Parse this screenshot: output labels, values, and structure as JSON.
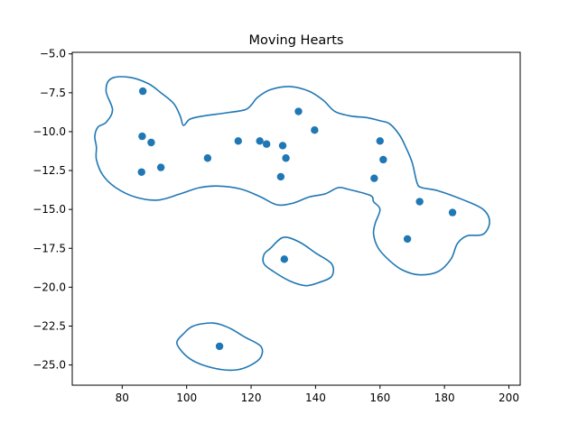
{
  "chart_data": {
    "type": "scatter",
    "title": "Moving Hearts",
    "xlabel": "",
    "ylabel": "",
    "xlim": [
      64.5,
      203.5
    ],
    "ylim": [
      -26.3,
      -4.9
    ],
    "grid": false,
    "x_ticks": [
      80,
      100,
      120,
      140,
      160,
      180,
      200
    ],
    "x_tick_labels": [
      "80",
      "100",
      "120",
      "140",
      "160",
      "180",
      "200"
    ],
    "y_ticks": [
      -5.0,
      -7.5,
      -10.0,
      -12.5,
      -15.0,
      -17.5,
      -20.0,
      -22.5,
      -25.0
    ],
    "y_tick_labels": [
      "−5.0",
      "−7.5",
      "−10.0",
      "−12.5",
      "−15.0",
      "−17.5",
      "−20.0",
      "−22.5",
      "−25.0"
    ],
    "marker_color": "#1f77b4",
    "contour_color": "#1f77b4",
    "points": [
      {
        "x": 86.4,
        "y": -7.4
      },
      {
        "x": 86.2,
        "y": -10.3
      },
      {
        "x": 89.0,
        "y": -10.7
      },
      {
        "x": 86.0,
        "y": -12.6
      },
      {
        "x": 92.0,
        "y": -12.3
      },
      {
        "x": 106.5,
        "y": -11.7
      },
      {
        "x": 116.0,
        "y": -10.6
      },
      {
        "x": 122.7,
        "y": -10.6
      },
      {
        "x": 124.8,
        "y": -10.8
      },
      {
        "x": 129.8,
        "y": -10.9
      },
      {
        "x": 130.8,
        "y": -11.7
      },
      {
        "x": 129.2,
        "y": -12.9
      },
      {
        "x": 134.7,
        "y": -8.7
      },
      {
        "x": 139.7,
        "y": -9.9
      },
      {
        "x": 160.0,
        "y": -10.6
      },
      {
        "x": 161.0,
        "y": -11.8
      },
      {
        "x": 158.2,
        "y": -13.0
      },
      {
        "x": 172.3,
        "y": -14.5
      },
      {
        "x": 182.5,
        "y": -15.2
      },
      {
        "x": 168.5,
        "y": -16.9
      },
      {
        "x": 130.3,
        "y": -18.2
      },
      {
        "x": 110.2,
        "y": -23.8
      }
    ],
    "contours": [
      [
        [
          77.0,
          -8.6
        ],
        [
          75.0,
          -7.4
        ],
        [
          76.5,
          -6.6
        ],
        [
          82.0,
          -6.5
        ],
        [
          88.0,
          -6.9
        ],
        [
          92.0,
          -7.5
        ],
        [
          96.0,
          -8.2
        ],
        [
          98.0,
          -9.0
        ],
        [
          99.0,
          -9.6
        ],
        [
          101.0,
          -9.2
        ],
        [
          105.0,
          -9.0
        ],
        [
          112.0,
          -8.8
        ],
        [
          118.0,
          -8.6
        ],
        [
          120.0,
          -8.3
        ],
        [
          122.0,
          -7.8
        ],
        [
          126.0,
          -7.3
        ],
        [
          132.0,
          -7.1
        ],
        [
          138.0,
          -7.4
        ],
        [
          142.5,
          -8.0
        ],
        [
          146.0,
          -8.7
        ],
        [
          151.0,
          -9.0
        ],
        [
          156.0,
          -9.1
        ],
        [
          160.0,
          -9.3
        ],
        [
          163.0,
          -9.5
        ],
        [
          166.0,
          -10.2
        ],
        [
          168.0,
          -11.0
        ],
        [
          170.0,
          -12.0
        ],
        [
          171.5,
          -13.3
        ],
        [
          173.0,
          -13.6
        ],
        [
          178.0,
          -13.8
        ],
        [
          186.0,
          -14.4
        ],
        [
          192.0,
          -15.0
        ],
        [
          194.0,
          -15.8
        ],
        [
          192.0,
          -16.6
        ],
        [
          187.0,
          -16.7
        ],
        [
          184.0,
          -17.2
        ],
        [
          182.0,
          -18.2
        ],
        [
          178.0,
          -19.0
        ],
        [
          172.0,
          -19.2
        ],
        [
          167.0,
          -18.9
        ],
        [
          163.0,
          -18.3
        ],
        [
          159.5,
          -17.5
        ],
        [
          158.0,
          -16.6
        ],
        [
          158.5,
          -15.9
        ],
        [
          160.0,
          -15.0
        ],
        [
          158.0,
          -14.5
        ],
        [
          157.0,
          -14.1
        ],
        [
          150.0,
          -13.7
        ],
        [
          147.0,
          -13.6
        ],
        [
          143.0,
          -14.0
        ],
        [
          138.0,
          -14.2
        ],
        [
          133.0,
          -14.6
        ],
        [
          128.0,
          -14.7
        ],
        [
          123.0,
          -14.2
        ],
        [
          117.0,
          -13.7
        ],
        [
          110.0,
          -13.5
        ],
        [
          104.0,
          -13.6
        ],
        [
          98.0,
          -14.0
        ],
        [
          91.0,
          -14.4
        ],
        [
          84.0,
          -14.2
        ],
        [
          78.0,
          -13.6
        ],
        [
          74.0,
          -12.8
        ],
        [
          72.0,
          -11.8
        ],
        [
          72.0,
          -11.0
        ],
        [
          71.5,
          -10.3
        ],
        [
          72.5,
          -9.7
        ],
        [
          75.0,
          -9.4
        ],
        [
          77.0,
          -8.6
        ]
      ],
      [
        [
          126.0,
          -17.5
        ],
        [
          130.0,
          -16.8
        ],
        [
          135.0,
          -17.1
        ],
        [
          140.0,
          -17.8
        ],
        [
          145.0,
          -18.5
        ],
        [
          145.0,
          -19.3
        ],
        [
          141.0,
          -19.7
        ],
        [
          137.0,
          -19.9
        ],
        [
          132.0,
          -19.6
        ],
        [
          127.0,
          -19.0
        ],
        [
          124.0,
          -18.5
        ],
        [
          124.0,
          -17.9
        ],
        [
          126.0,
          -17.5
        ]
      ],
      [
        [
          99.0,
          -23.0
        ],
        [
          102.0,
          -22.5
        ],
        [
          108.0,
          -22.3
        ],
        [
          113.0,
          -22.6
        ],
        [
          118.0,
          -23.2
        ],
        [
          123.0,
          -23.8
        ],
        [
          123.0,
          -24.5
        ],
        [
          120.0,
          -25.0
        ],
        [
          116.0,
          -25.3
        ],
        [
          111.0,
          -25.3
        ],
        [
          105.0,
          -25.0
        ],
        [
          101.0,
          -24.6
        ],
        [
          98.0,
          -24.0
        ],
        [
          97.0,
          -23.5
        ],
        [
          99.0,
          -23.0
        ]
      ]
    ]
  }
}
